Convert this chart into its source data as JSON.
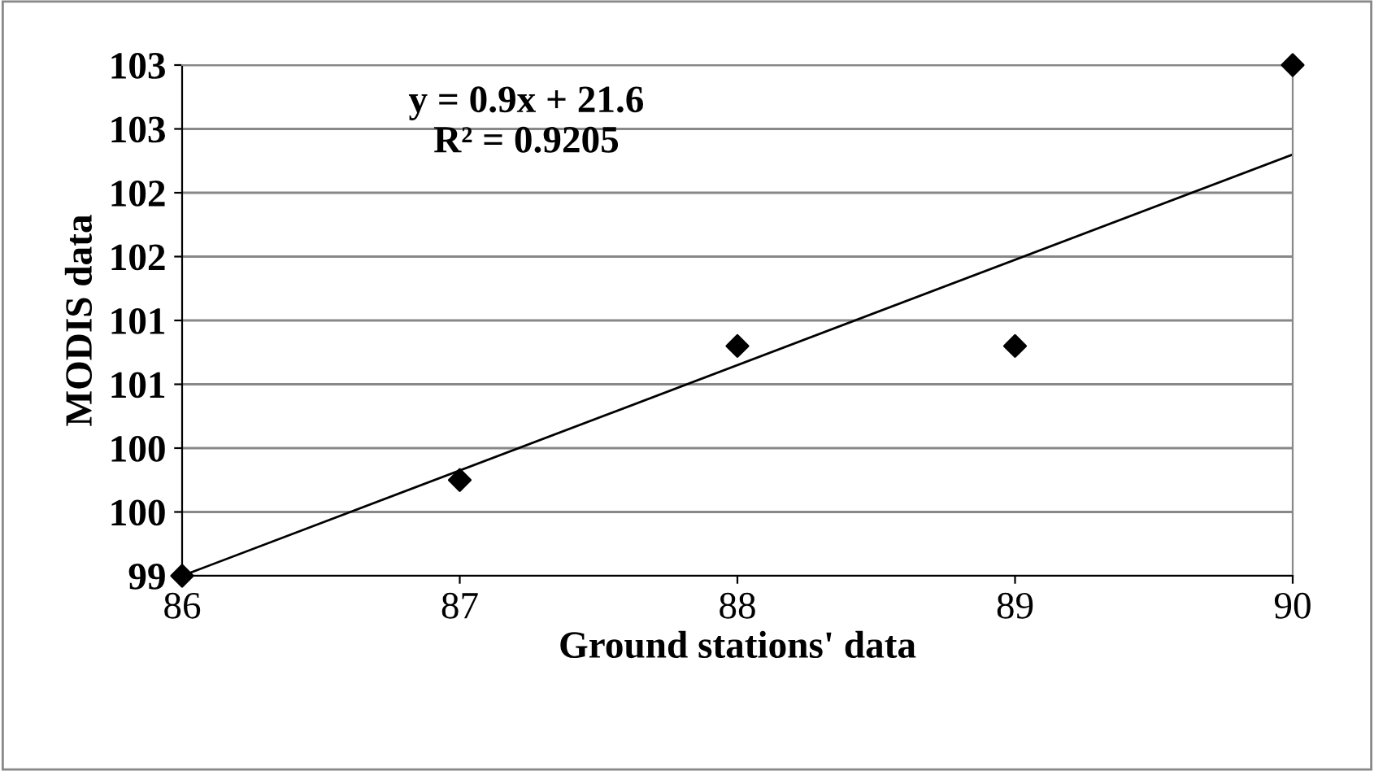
{
  "chart_data": {
    "type": "scatter",
    "xlabel": "Ground stations' data",
    "ylabel": "MODIS data",
    "x": [
      86,
      87,
      88,
      89,
      90
    ],
    "series": [
      {
        "color": "#000000",
        "marker": "diamond",
        "values": [
          99,
          99.75,
          100.8,
          100.8,
          103
        ]
      },
      {
        "type": "line",
        "color": "#000000",
        "marker": "none",
        "x": [
          86,
          90
        ],
        "values": [
          99,
          102.3
        ]
      }
    ],
    "xlim": [
      86,
      90
    ],
    "xticks": [
      86,
      87,
      88,
      89,
      90
    ],
    "ylim": [
      99,
      103
    ],
    "yticks": [
      99,
      {
        "value": 99.5,
        "label": "100"
      },
      100,
      {
        "value": 100.5,
        "label": "101"
      },
      101,
      {
        "value": 101.5,
        "label": "102"
      },
      102,
      {
        "value": 102.5,
        "label": "103"
      },
      103
    ],
    "grid": "y",
    "legend": false,
    "annotations": [
      "y = 0.9x + 21.6\nR² = 0.9205"
    ]
  }
}
